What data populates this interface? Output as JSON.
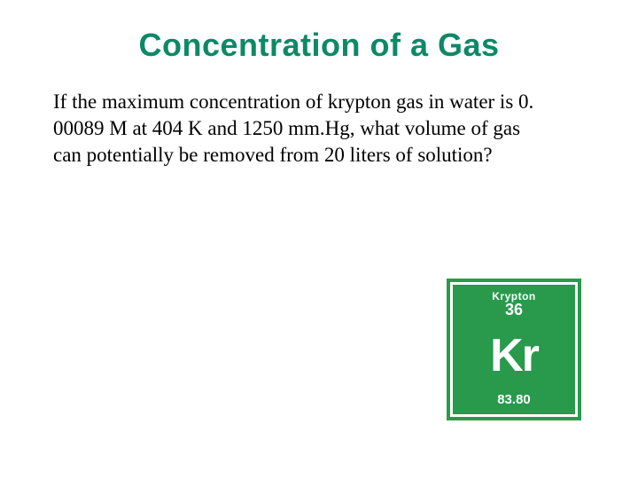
{
  "title": "Concentration of a Gas",
  "body": "If the maximum concentration of krypton gas in water is 0. 00089 M at 404 K and 1250 mm.Hg, what volume of gas can potentially be removed from 20 liters of solution?",
  "element": {
    "name": "Krypton",
    "atomic_number": "36",
    "symbol": "Kr",
    "mass": "83.80",
    "tile_color": "#299a4c",
    "text_color": "#ffffff",
    "border_inner": "#ffffff"
  },
  "colors": {
    "title": "#0d8968",
    "body": "#000000",
    "background": "#ffffff"
  },
  "fonts": {
    "title_size": 36,
    "body_size": 23,
    "symbol_size": 52
  }
}
